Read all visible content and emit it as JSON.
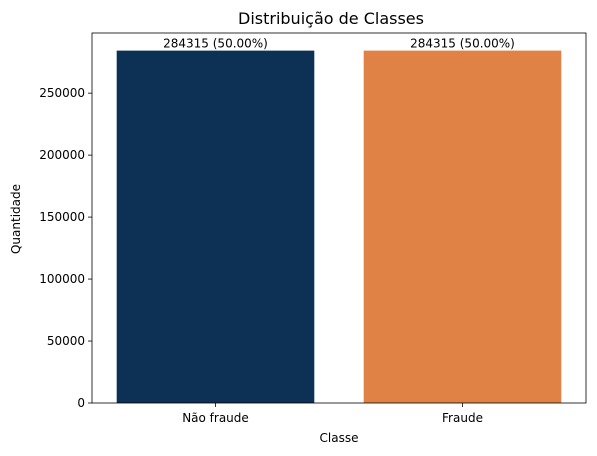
{
  "chart_data": {
    "type": "bar",
    "title": "Distribuição de Classes",
    "xlabel": "Classe",
    "ylabel": "Quantidade",
    "categories": [
      "Não fraude",
      "Fraude"
    ],
    "values": [
      284315,
      284315
    ],
    "data_labels": [
      "284315 (50.00%)",
      "284315 (50.00%)"
    ],
    "colors": [
      "#0d3055",
      "#e08146"
    ],
    "ylim": [
      0,
      298530
    ],
    "yticks": [
      0,
      50000,
      100000,
      150000,
      200000,
      250000
    ],
    "ytick_labels": [
      "0",
      "50000",
      "100000",
      "150000",
      "200000",
      "250000"
    ],
    "grid": false,
    "legend": "none"
  }
}
